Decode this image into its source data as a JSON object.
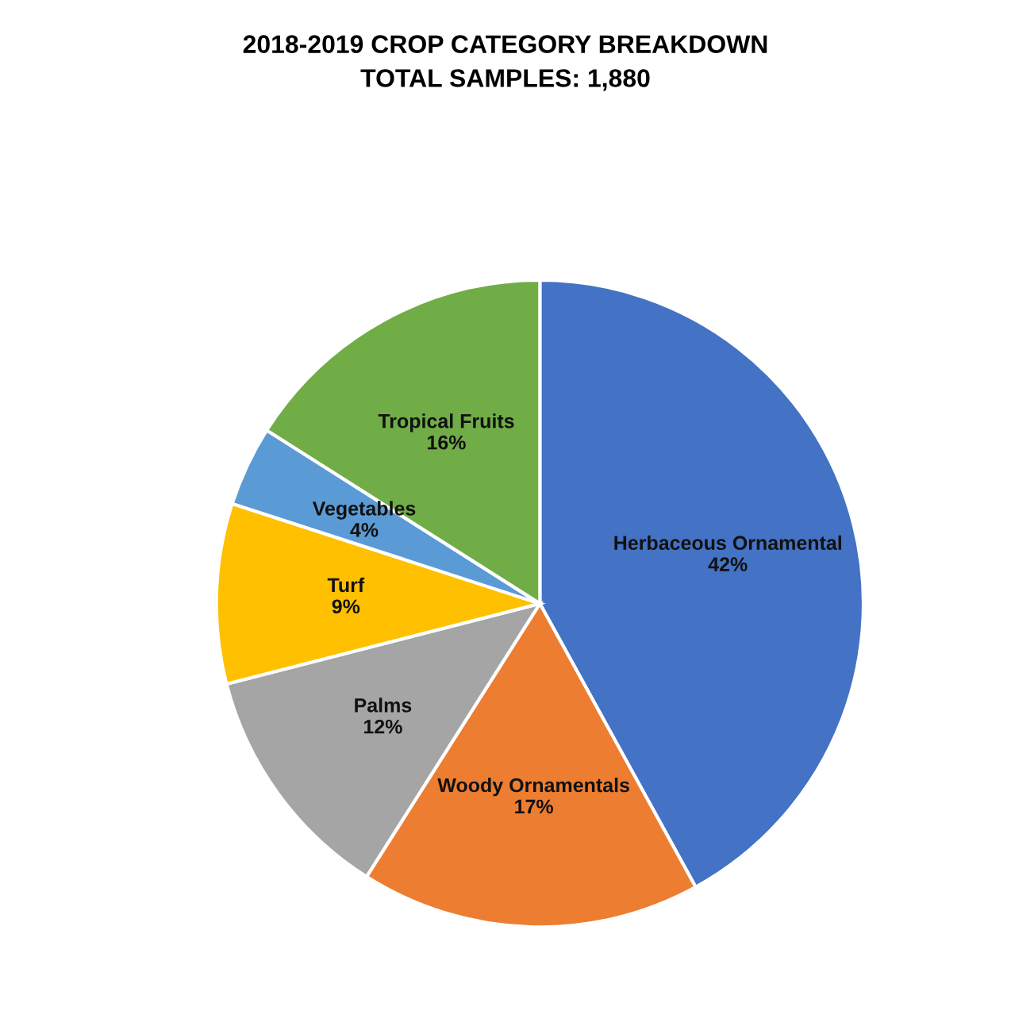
{
  "chart_data": {
    "type": "pie",
    "title": "2018-2019 CROP CATEGORY BREAKDOWN",
    "subtitle": "TOTAL SAMPLES: 1,880",
    "categories": [
      "Herbaceous Ornamental",
      "Woody Ornamentals",
      "Palms",
      "Turf",
      "Vegetables",
      "Tropical Fruits"
    ],
    "values": [
      42,
      17,
      12,
      9,
      4,
      16
    ],
    "value_labels": [
      "42%",
      "17%",
      "12%",
      "9%",
      "4%",
      "16%"
    ],
    "colors": [
      "#4472c4",
      "#ed7d31",
      "#a5a5a5",
      "#ffc000",
      "#5b9bd5",
      "#70ad47"
    ],
    "legend": false
  }
}
